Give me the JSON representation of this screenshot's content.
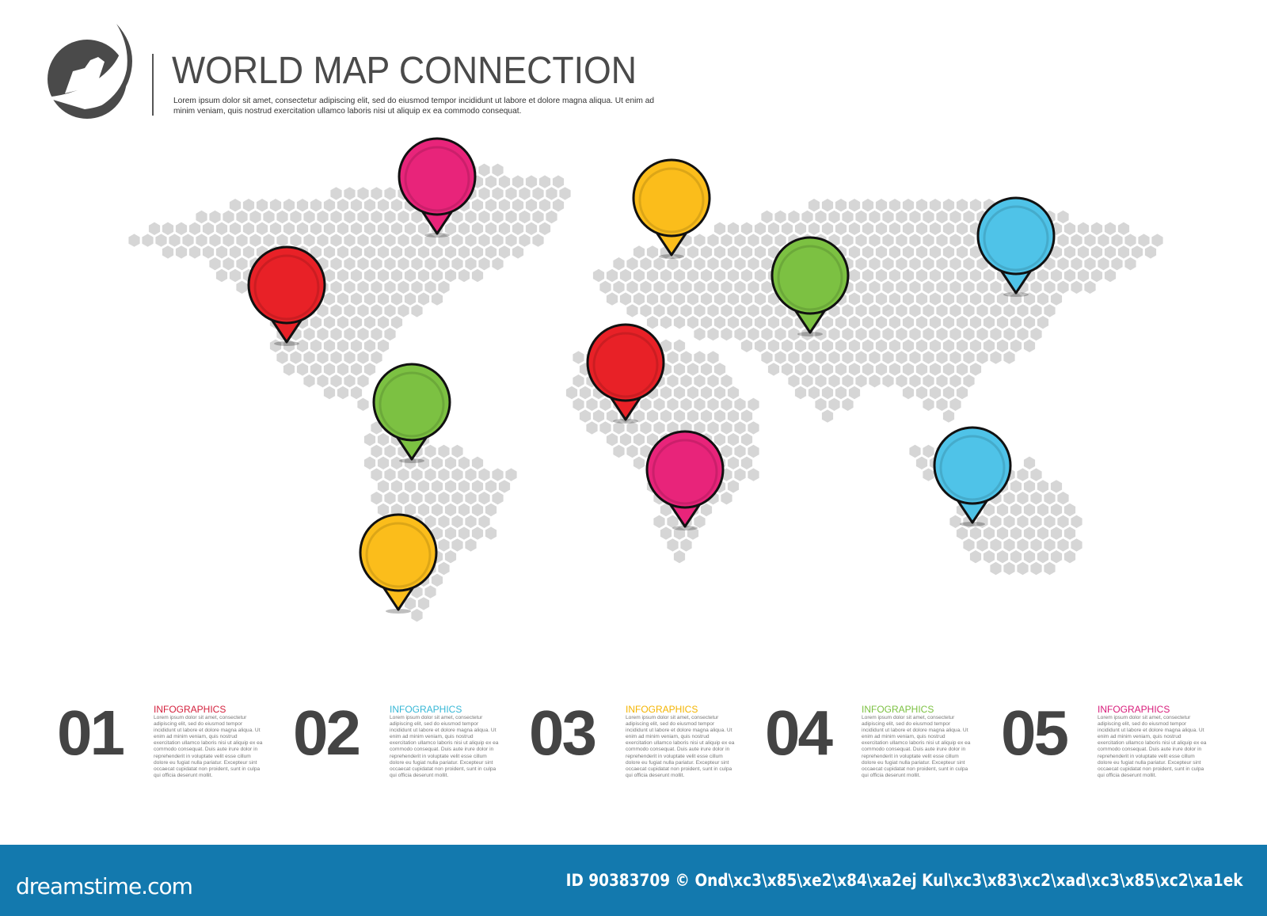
{
  "header": {
    "title": "WORLD MAP CONNECTION",
    "subtitle": "Lorem ipsum dolor sit amet, consectetur adipiscing elit, sed do eiusmod tempor incididunt ut labore et dolore magna aliqua. Ut enim ad minim veniam, quis nostrud exercitation ullamco laboris nisi ut aliquip ex ea commodo consequat."
  },
  "colors": {
    "pink": "#e8247a",
    "yellow": "#fbbd1b",
    "red": "#e82127",
    "green": "#7cc142",
    "blue": "#4fc3e8",
    "hex": "#d6d6d6",
    "footer": "#1379ae"
  },
  "pins": [
    {
      "color": "pink"
    },
    {
      "color": "yellow"
    },
    {
      "color": "red"
    },
    {
      "color": "green"
    },
    {
      "color": "blue"
    },
    {
      "color": "red"
    },
    {
      "color": "green"
    },
    {
      "color": "pink"
    },
    {
      "color": "blue"
    },
    {
      "color": "yellow"
    }
  ],
  "steps": [
    {
      "number": "01",
      "label": "INFOGRAPHICS",
      "color": "#d4213d",
      "text": "Lorem ipsum dolor sit amet, consectetur adipiscing elit, sed do eiusmod tempor incididunt ut labore et dolore magna aliqua. Ut enim ad minim veniam, quis nostrud exercitation ullamco laboris nisi ut aliquip ex ea commodo consequat. Duis aute irure dolor in reprehenderit in voluptate velit esse cillum dolore eu fugiat nulla pariatur. Excepteur sint occaecat cupidatat non proident, sunt in culpa qui officia deserunt mollit."
    },
    {
      "number": "02",
      "label": "INFOGRAPHICS",
      "color": "#36b7d6",
      "text": "Lorem ipsum dolor sit amet, consectetur adipiscing elit, sed do eiusmod tempor incididunt ut labore et dolore magna aliqua. Ut enim ad minim veniam, quis nostrud exercitation ullamco laboris nisi ut aliquip ex ea commodo consequat. Duis aute irure dolor in reprehenderit in voluptate velit esse cillum dolore eu fugiat nulla pariatur. Excepteur sint occaecat cupidatat non proident, sunt in culpa qui officia deserunt mollit."
    },
    {
      "number": "03",
      "label": "INFOGRAPHICS",
      "color": "#f4b400",
      "text": "Lorem ipsum dolor sit amet, consectetur adipiscing elit, sed do eiusmod tempor incididunt ut labore et dolore magna aliqua. Ut enim ad minim veniam, quis nostrud exercitation ullamco laboris nisi ut aliquip ex ea commodo consequat. Duis aute irure dolor in reprehenderit in voluptate velit esse cillum dolore eu fugiat nulla pariatur. Excepteur sint occaecat cupidatat non proident, sunt in culpa qui officia deserunt mollit."
    },
    {
      "number": "04",
      "label": "INFOGRAPHICS",
      "color": "#7cc142",
      "text": "Lorem ipsum dolor sit amet, consectetur adipiscing elit, sed do eiusmod tempor incididunt ut labore et dolore magna aliqua. Ut enim ad minim veniam, quis nostrud exercitation ullamco laboris nisi ut aliquip ex ea commodo consequat. Duis aute irure dolor in reprehenderit in voluptate velit esse cillum dolore eu fugiat nulla pariatur. Excepteur sint occaecat cupidatat non proident, sunt in culpa qui officia deserunt mollit."
    },
    {
      "number": "05",
      "label": "INFOGRAPHICS",
      "color": "#d81b7a",
      "text": "Lorem ipsum dolor sit amet, consectetur adipiscing elit, sed do eiusmod tempor incididunt ut labore et dolore magna aliqua. Ut enim ad minim veniam, quis nostrud exercitation ullamco laboris nisi ut aliquip ex ea commodo consequat. Duis aute irure dolor in reprehenderit in voluptate velit esse cillum dolore eu fugiat nulla pariatur. Excepteur sint occaecat cupidatat non proident, sunt in culpa qui officia deserunt mollit."
    }
  ],
  "footer": {
    "brand": "dreamstime.com",
    "credit": "ID 90383709 © Ond\\xc3\\x85\\xe2\\x84\\xa2ej Kul\\xc3\\x83\\xc2\\xad\\xc3\\x85\\xc2\\xa1ek"
  }
}
